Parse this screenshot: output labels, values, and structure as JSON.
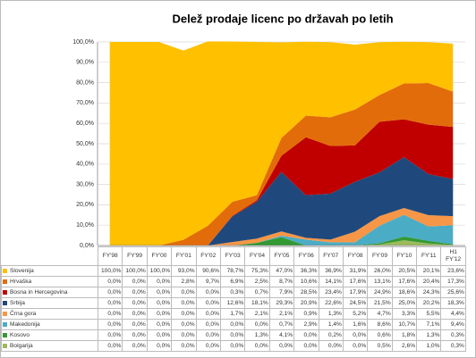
{
  "chart_data": {
    "type": "stacked-area",
    "title": "Delež prodaje licenc po državah po letih",
    "categories": [
      "FY'98",
      "FY'99",
      "FY'00",
      "FY'01",
      "FY'02",
      "FY'03",
      "FY'04",
      "FY'05",
      "FY'06",
      "FY'07",
      "FY'08",
      "FY'09",
      "FY'10",
      "FY'11",
      "H1 FY'12"
    ],
    "ylim": [
      0,
      100
    ],
    "yticks": [
      {
        "value": 0,
        "label": "0,0%"
      },
      {
        "value": 10,
        "label": "10,0%"
      },
      {
        "value": 20,
        "label": "20,0%"
      },
      {
        "value": 30,
        "label": "30,0%"
      },
      {
        "value": 40,
        "label": "40,0%"
      },
      {
        "value": 50,
        "label": "50,0%"
      },
      {
        "value": 60,
        "label": "60,0%"
      },
      {
        "value": 70,
        "label": "70,0%"
      },
      {
        "value": 80,
        "label": "80,0%"
      },
      {
        "value": 90,
        "label": "90,0%"
      },
      {
        "value": 100,
        "label": "100,0%"
      }
    ],
    "grid": true,
    "series": [
      {
        "name": "Slovenija",
        "color": "#ffc000",
        "values": [
          100,
          100,
          100,
          93,
          90.6,
          78.7,
          75.3,
          47,
          36.3,
          36.9,
          31.9,
          26,
          20.5,
          20.1,
          23.6
        ],
        "value_labels": [
          "100,0%",
          "100,0%",
          "100,0%",
          "93,0%",
          "90,6%",
          "78,7%",
          "75,3%",
          "47,0%",
          "36,3%",
          "36,9%",
          "31,9%",
          "26,0%",
          "20,5%",
          "20,1%",
          "23,6%"
        ]
      },
      {
        "name": "Hrvaška",
        "color": "#e36c0a",
        "values": [
          0,
          0,
          0,
          2.8,
          9.7,
          6.9,
          2.5,
          8.7,
          10.6,
          14.1,
          17.6,
          13.1,
          17.6,
          20.4,
          17.3
        ],
        "value_labels": [
          "0,0%",
          "0,0%",
          "0,0%",
          "2,8%",
          "9,7%",
          "6,9%",
          "2,5%",
          "8,7%",
          "10,6%",
          "14,1%",
          "17,6%",
          "13,1%",
          "17,6%",
          "20,4%",
          "17,3%"
        ]
      },
      {
        "name": "Bosna in Hercegovina",
        "color": "#c00000",
        "values": [
          0,
          0,
          0,
          0,
          0,
          0.3,
          0.7,
          7.9,
          28.5,
          23.4,
          17.9,
          24.9,
          18.6,
          24.3,
          25.6
        ],
        "value_labels": [
          "0,0%",
          "0,0%",
          "0,0%",
          "0,0%",
          "0,0%",
          "0,3%",
          "0,7%",
          "7,9%",
          "28,5%",
          "23,4%",
          "17,9%",
          "24,9%",
          "18,6%",
          "24,3%",
          "25,6%"
        ]
      },
      {
        "name": "Srbija",
        "color": "#1f497d",
        "values": [
          0,
          0,
          0,
          0,
          0,
          12.6,
          18.1,
          29.3,
          20.9,
          22.6,
          24.5,
          21.5,
          25,
          20.2,
          18.3
        ],
        "value_labels": [
          "0,0%",
          "0,0%",
          "0,0%",
          "0,0%",
          "0,0%",
          "12,6%",
          "18,1%",
          "29,3%",
          "20,9%",
          "22,6%",
          "24,5%",
          "21,5%",
          "25,0%",
          "20,2%",
          "18,3%"
        ]
      },
      {
        "name": "Črna gora",
        "color": "#f79646",
        "values": [
          0,
          0,
          0,
          0,
          0,
          1.7,
          2.1,
          2.1,
          0.9,
          1.3,
          5.2,
          4.7,
          3.3,
          5.5,
          4.4
        ],
        "value_labels": [
          "0,0%",
          "0,0%",
          "0,0%",
          "0,0%",
          "0,0%",
          "1,7%",
          "2,1%",
          "2,1%",
          "0,9%",
          "1,3%",
          "5,2%",
          "4,7%",
          "3,3%",
          "5,5%",
          "4,4%"
        ]
      },
      {
        "name": "Makedonija",
        "color": "#4bacc6",
        "values": [
          0,
          0,
          0,
          0,
          0,
          0,
          0,
          0.7,
          2.9,
          1.4,
          1.6,
          8.6,
          10.7,
          7.1,
          9.4
        ],
        "value_labels": [
          "0,0%",
          "0,0%",
          "0,0%",
          "0,0%",
          "0,0%",
          "0,0%",
          "0,0%",
          "0,7%",
          "2,9%",
          "1,4%",
          "1,6%",
          "8,6%",
          "10,7%",
          "7,1%",
          "9,4%"
        ]
      },
      {
        "name": "Kosovo",
        "color": "#339933",
        "values": [
          0,
          0,
          0,
          0,
          0,
          0,
          1.3,
          4.1,
          0,
          0.2,
          0,
          0.6,
          1.8,
          1.3,
          0.3
        ],
        "value_labels": [
          "0,0%",
          "0,0%",
          "0,0%",
          "0,0%",
          "0,0%",
          "0,0%",
          "1,3%",
          "4,1%",
          "0,0%",
          "0,2%",
          "0,0%",
          "0,6%",
          "1,8%",
          "1,3%",
          "0,3%"
        ]
      },
      {
        "name": "Bolgarija",
        "color": "#9bbb59",
        "values": [
          0,
          0,
          0,
          0,
          0,
          0,
          0,
          0,
          0,
          0,
          0,
          0.5,
          2.6,
          1,
          0.3
        ],
        "value_labels": [
          "0,0%",
          "0,0%",
          "0,0%",
          "0,0%",
          "0,0%",
          "0,0%",
          "0,0%",
          "0,0%",
          "0,0%",
          "0,0%",
          "0,0%",
          "0,5%",
          "2,6%",
          "1,0%",
          "0,3%"
        ]
      }
    ]
  }
}
